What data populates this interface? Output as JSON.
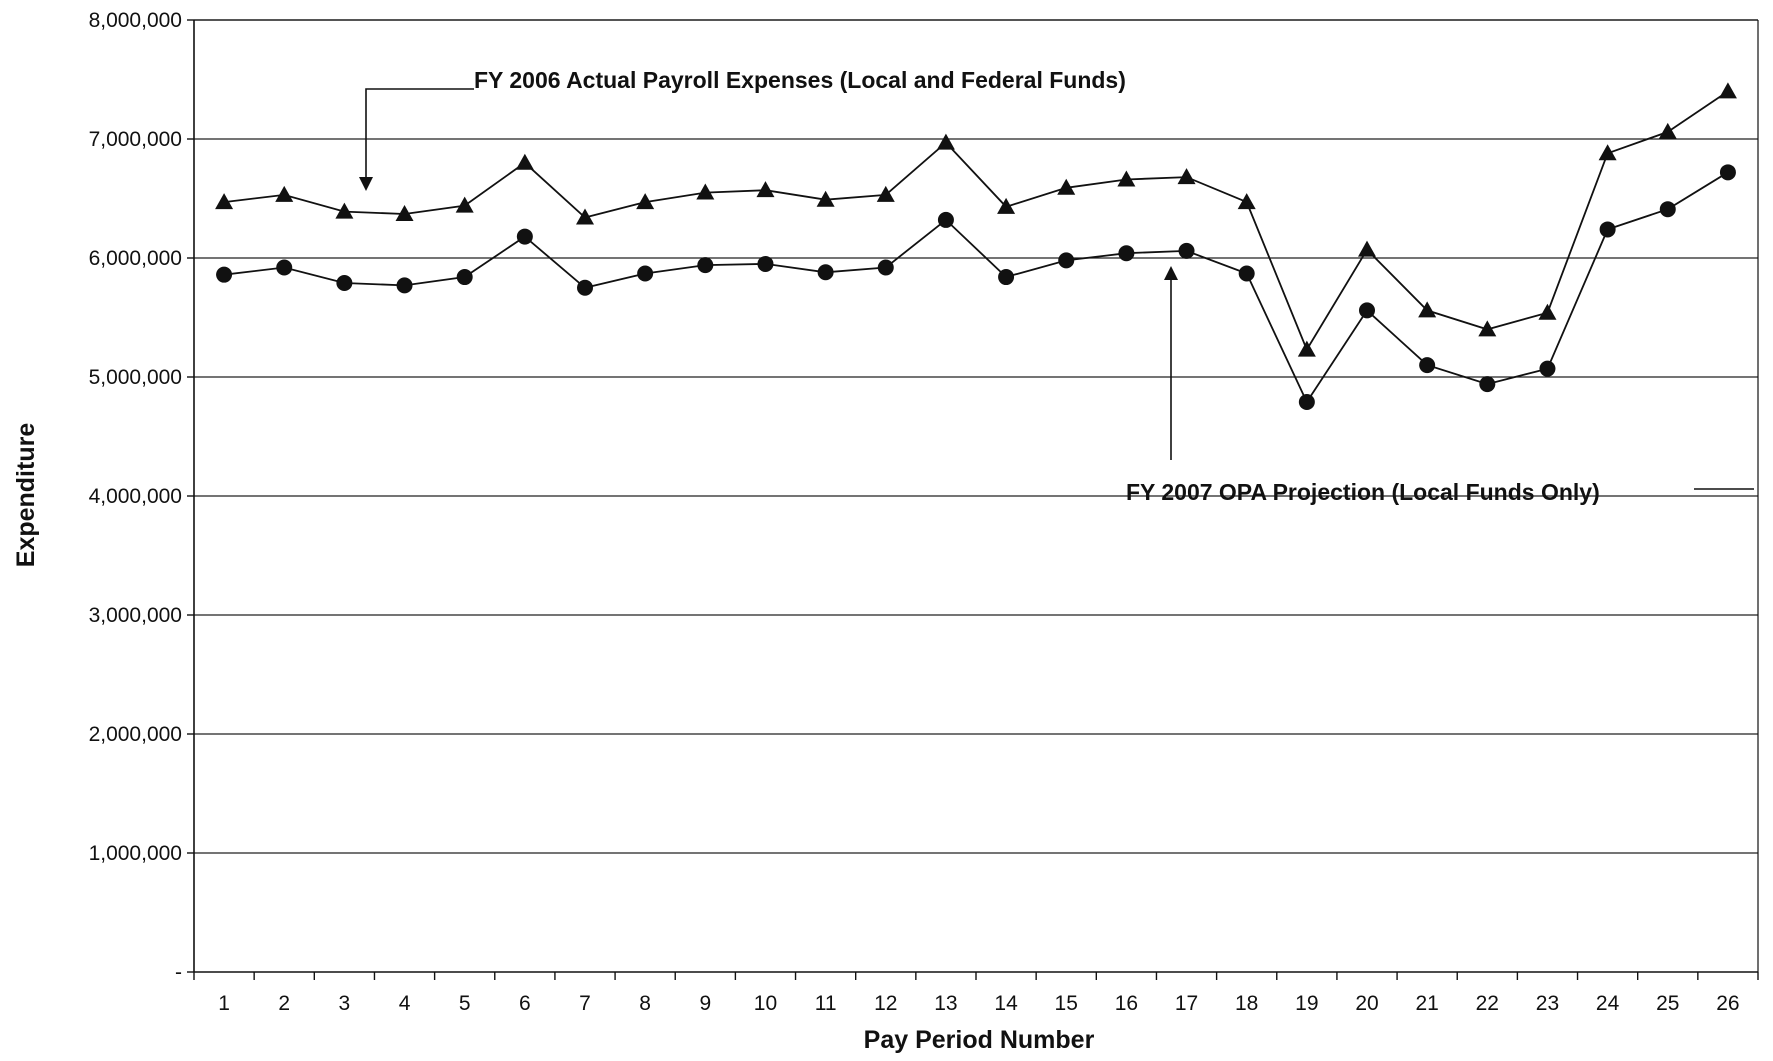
{
  "chart_data": {
    "type": "line",
    "x": [
      1,
      2,
      3,
      4,
      5,
      6,
      7,
      8,
      9,
      10,
      11,
      12,
      13,
      14,
      15,
      16,
      17,
      18,
      19,
      20,
      21,
      22,
      23,
      24,
      25,
      26
    ],
    "series": [
      {
        "name": "FY 2006 Actual Payroll Expenses  (Local and Federal Funds)",
        "marker": "triangle",
        "values": [
          6470000,
          6530000,
          6390000,
          6370000,
          6440000,
          6800000,
          6340000,
          6470000,
          6550000,
          6570000,
          6490000,
          6530000,
          6970000,
          6430000,
          6590000,
          6660000,
          6680000,
          6470000,
          5230000,
          6070000,
          5560000,
          5400000,
          5540000,
          6880000,
          7060000,
          7400000
        ]
      },
      {
        "name": "FY 2007 OPA Projection (Local Funds Only)",
        "marker": "circle",
        "values": [
          5860000,
          5920000,
          5790000,
          5770000,
          5840000,
          6180000,
          5750000,
          5870000,
          5940000,
          5950000,
          5880000,
          5920000,
          6320000,
          5840000,
          5980000,
          6040000,
          6060000,
          5870000,
          4790000,
          5560000,
          5100000,
          4940000,
          5070000,
          6240000,
          6410000,
          6720000
        ]
      }
    ],
    "y_ticks": [
      "8,000,000",
      "7,000,000",
      "6,000,000",
      "5,000,000",
      "4,000,000",
      "3,000,000",
      "2,000,000",
      "1,000,000",
      "-"
    ],
    "x_ticks": [
      "1",
      "2",
      "3",
      "4",
      "5",
      "6",
      "7",
      "8",
      "9",
      "10",
      "11",
      "12",
      "13",
      "14",
      "15",
      "16",
      "17",
      "18",
      "19",
      "20",
      "21",
      "22",
      "23",
      "24",
      "25",
      "26"
    ],
    "ylim": [
      0,
      8000000
    ],
    "xlabel": "Pay Period Number",
    "ylabel": "Expenditure",
    "grid": "horizontal",
    "legend": "none",
    "annotations": [
      "FY 2006 Actual Payroll Expenses  (Local and Federal Funds)",
      "FY 2007 OPA Projection (Local Funds Only)"
    ],
    "colors": {
      "line": "#111111",
      "grid": "#222222",
      "background": "#ffffff"
    }
  }
}
